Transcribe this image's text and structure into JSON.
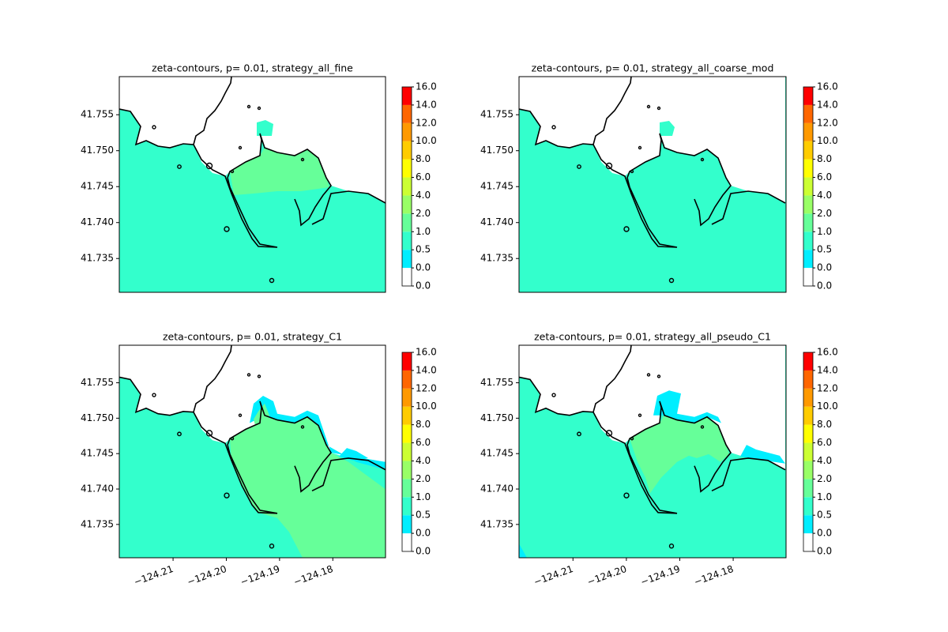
{
  "chart_data": [
    {
      "type": "contourf",
      "title": "zeta-contours, p= 0.01, strategy_all_fine",
      "xlim": [
        -124.2201,
        -124.1701
      ],
      "ylim": [
        41.7303,
        41.7603
      ],
      "yticks": [
        41.755,
        {
          "value": 41.75,
          "label": "41.750"
        },
        41.745,
        {
          "value": 41.74,
          "label": "41.740"
        },
        41.735
      ],
      "levels": [
        {
          "value": 0,
          "label": "0.0"
        },
        {
          "value": 0,
          "label": "0.0"
        },
        {
          "value": 0.5,
          "label": "0.5"
        },
        {
          "value": 1,
          "label": "1.0"
        },
        {
          "value": 2,
          "label": "2.0"
        },
        {
          "value": 4,
          "label": "4.0"
        },
        {
          "value": 6,
          "label": "6.0"
        },
        {
          "value": 8,
          "label": "8.0"
        },
        {
          "value": 10,
          "label": "10.0"
        },
        {
          "value": 12,
          "label": "12.0"
        },
        {
          "value": 14,
          "label": "14.0"
        },
        {
          "value": 16,
          "label": "16.0"
        }
      ],
      "colors": [
        "#ffffff",
        "#00eeff",
        "#33ffcc",
        "#66ff99",
        "#99ff66",
        "#ccff33",
        "#ffff00",
        "#ffcc00",
        "#ff9900",
        "#ff6600",
        "#ff0000"
      ]
    },
    {
      "type": "contourf",
      "title": "zeta-contours, p= 0.01, strategy_all_coarse_mod",
      "xlim": [
        -124.2201,
        -124.1701
      ],
      "ylim": [
        41.7303,
        41.7603
      ],
      "yticks": [
        41.755,
        {
          "value": 41.75,
          "label": "41.750"
        },
        41.745,
        {
          "value": 41.74,
          "label": "41.740"
        },
        41.735
      ],
      "levels": [
        {
          "value": 0,
          "label": "0.0"
        },
        {
          "value": 0,
          "label": "0.0"
        },
        {
          "value": 0.5,
          "label": "0.5"
        },
        {
          "value": 1,
          "label": "1.0"
        },
        {
          "value": 2,
          "label": "2.0"
        },
        {
          "value": 4,
          "label": "4.0"
        },
        {
          "value": 6,
          "label": "6.0"
        },
        {
          "value": 8,
          "label": "8.0"
        },
        {
          "value": 10,
          "label": "10.0"
        },
        {
          "value": 12,
          "label": "12.0"
        },
        {
          "value": 14,
          "label": "14.0"
        },
        {
          "value": 16,
          "label": "16.0"
        }
      ],
      "colors": [
        "#ffffff",
        "#00eeff",
        "#33ffcc",
        "#66ff99",
        "#99ff66",
        "#ccff33",
        "#ffff00",
        "#ffcc00",
        "#ff9900",
        "#ff6600",
        "#ff0000"
      ]
    },
    {
      "type": "contourf",
      "title": "zeta-contours, p= 0.01, strategy_C1",
      "xlim": [
        -124.2201,
        -124.1701
      ],
      "ylim": [
        41.7303,
        41.7603
      ],
      "xticks": [
        {
          "value": -124.21,
          "label": "−124.21"
        },
        {
          "value": -124.2,
          "label": "−124.20"
        },
        {
          "value": -124.19,
          "label": "−124.19"
        },
        {
          "value": -124.18,
          "label": "−124.18"
        }
      ],
      "yticks": [
        41.755,
        {
          "value": 41.75,
          "label": "41.750"
        },
        41.745,
        {
          "value": 41.74,
          "label": "41.740"
        },
        41.735
      ],
      "levels": [
        {
          "value": 0,
          "label": "0.0"
        },
        {
          "value": 0,
          "label": "0.0"
        },
        {
          "value": 0.5,
          "label": "0.5"
        },
        {
          "value": 1,
          "label": "1.0"
        },
        {
          "value": 2,
          "label": "2.0"
        },
        {
          "value": 4,
          "label": "4.0"
        },
        {
          "value": 6,
          "label": "6.0"
        },
        {
          "value": 8,
          "label": "8.0"
        },
        {
          "value": 10,
          "label": "10.0"
        },
        {
          "value": 12,
          "label": "12.0"
        },
        {
          "value": 14,
          "label": "14.0"
        },
        {
          "value": 16,
          "label": "16.0"
        }
      ],
      "colors": [
        "#ffffff",
        "#00eeff",
        "#33ffcc",
        "#66ff99",
        "#99ff66",
        "#ccff33",
        "#ffff00",
        "#ffcc00",
        "#ff9900",
        "#ff6600",
        "#ff0000"
      ]
    },
    {
      "type": "contourf",
      "title": "zeta-contours, p= 0.01, strategy_all_pseudo_C1",
      "xlim": [
        -124.2201,
        -124.1701
      ],
      "ylim": [
        41.7303,
        41.7603
      ],
      "xticks": [
        {
          "value": -124.21,
          "label": "−124.21"
        },
        {
          "value": -124.2,
          "label": "−124.20"
        },
        {
          "value": -124.19,
          "label": "−124.19"
        },
        {
          "value": -124.18,
          "label": "−124.18"
        }
      ],
      "yticks": [
        41.755,
        {
          "value": 41.75,
          "label": "41.750"
        },
        41.745,
        {
          "value": 41.74,
          "label": "41.740"
        },
        41.735
      ],
      "levels": [
        {
          "value": 0,
          "label": "0.0"
        },
        {
          "value": 0,
          "label": "0.0"
        },
        {
          "value": 0.5,
          "label": "0.5"
        },
        {
          "value": 1,
          "label": "1.0"
        },
        {
          "value": 2,
          "label": "2.0"
        },
        {
          "value": 4,
          "label": "4.0"
        },
        {
          "value": 6,
          "label": "6.0"
        },
        {
          "value": 8,
          "label": "8.0"
        },
        {
          "value": 10,
          "label": "10.0"
        },
        {
          "value": 12,
          "label": "12.0"
        },
        {
          "value": 14,
          "label": "14.0"
        },
        {
          "value": 16,
          "label": "16.0"
        }
      ],
      "colors": [
        "#ffffff",
        "#00eeff",
        "#33ffcc",
        "#66ff99",
        "#99ff66",
        "#ccff33",
        "#ffff00",
        "#ffcc00",
        "#ff9900",
        "#ff6600",
        "#ff0000"
      ]
    }
  ]
}
